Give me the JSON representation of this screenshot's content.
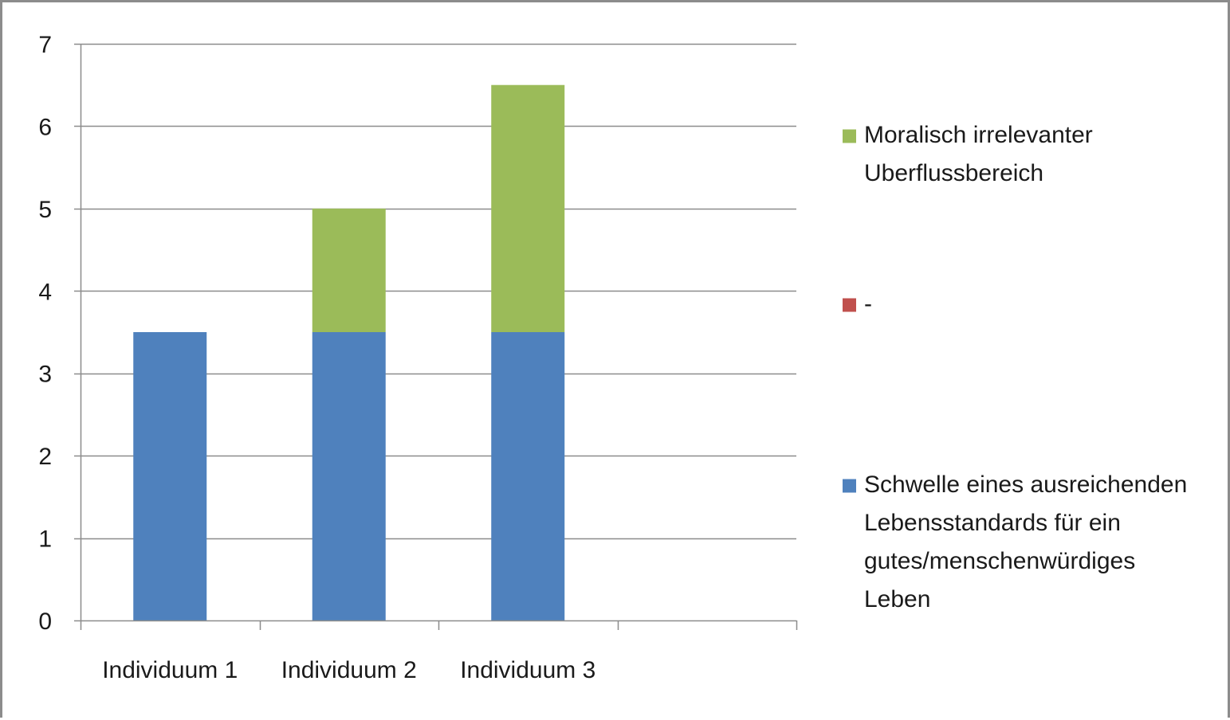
{
  "chart_data": {
    "type": "bar",
    "stacked": true,
    "title": "",
    "xlabel": "",
    "ylabel": "",
    "categories": [
      "Individuum 1",
      "Individuum 2",
      "Individuum 3",
      ""
    ],
    "ylim": [
      0,
      7
    ],
    "yticks": [
      0,
      1,
      2,
      3,
      4,
      5,
      6,
      7
    ],
    "grid": true,
    "legend_position": "right",
    "series": [
      {
        "name": "Schwelle eines ausreichenden Lebensstandards für ein gutes/menschenwürdiges Leben",
        "legend_lines": [
          "Schwelle eines ausreichenden",
          "Lebensstandards für ein",
          "gutes/menschenwürdiges",
          "Leben"
        ],
        "color": "#4f81bd",
        "values": [
          3.5,
          3.5,
          3.5,
          0
        ]
      },
      {
        "name": "-",
        "legend_lines": [
          "-"
        ],
        "color": "#c0504d",
        "values": [
          0,
          0,
          0,
          0
        ]
      },
      {
        "name": "Moralisch irrelevanter Uberflussbereich",
        "legend_lines": [
          "Moralisch irrelevanter",
          "Uberflussbereich"
        ],
        "color": "#9bbb59",
        "values": [
          0,
          1.5,
          3.0,
          0
        ]
      }
    ],
    "legend_order": [
      2,
      1,
      0
    ]
  }
}
